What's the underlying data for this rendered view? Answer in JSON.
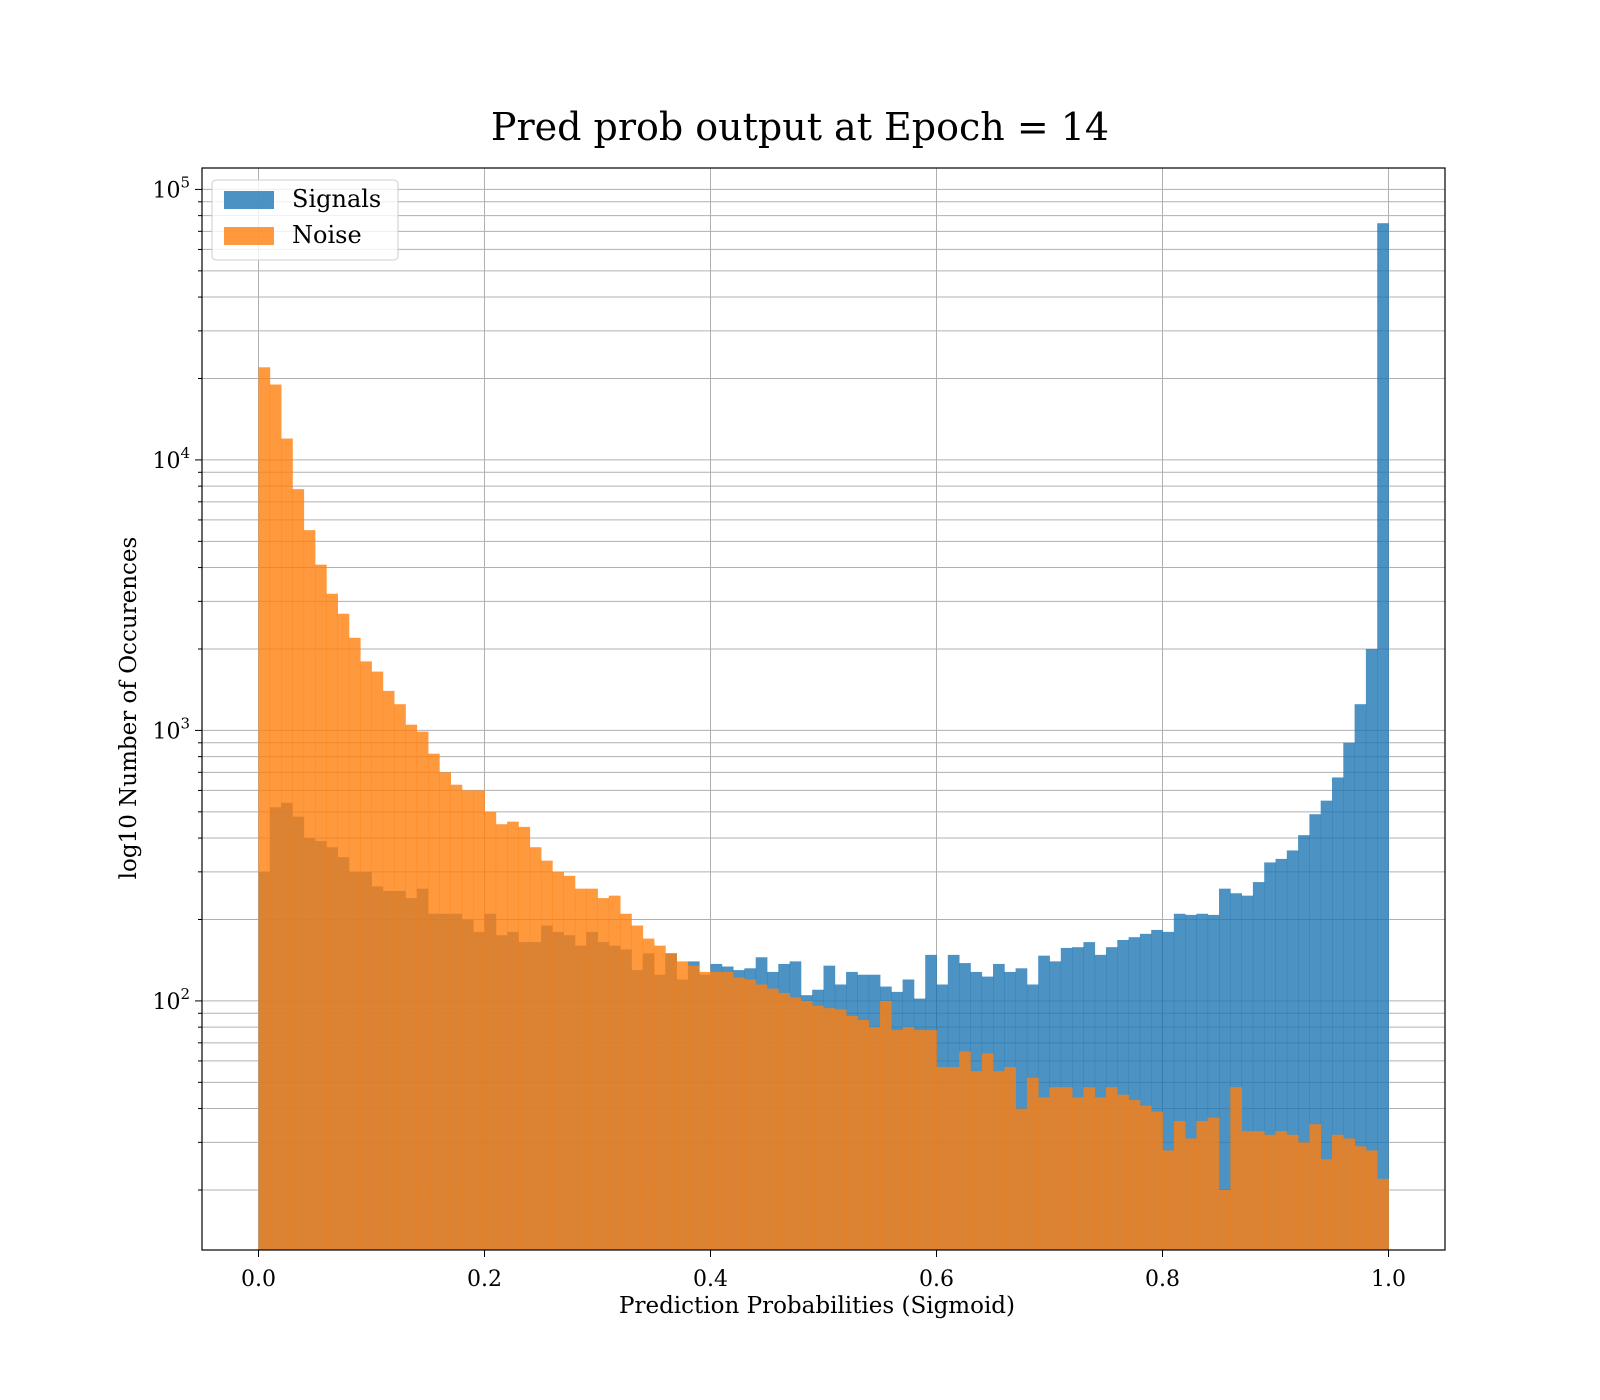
{
  "chart_data": {
    "type": "bar",
    "title": "Pred prob output at Epoch = 14",
    "xlabel": "Prediction Probabilities (Sigmoid)",
    "ylabel": "log10 Number of Occurences",
    "yscale": "log",
    "xlim": [
      -0.05,
      1.05
    ],
    "ylim": [
      12,
      120000
    ],
    "grid": true,
    "legend_position": "upper left",
    "xticks": [
      0.0,
      0.2,
      0.4,
      0.6,
      0.8,
      1.0
    ],
    "xtick_labels": [
      "0.0",
      "0.2",
      "0.4",
      "0.6",
      "0.8",
      "1.0"
    ],
    "yticks": [
      100,
      1000,
      10000,
      100000
    ],
    "ytick_labels": [
      {
        "base": "10",
        "exp": "2"
      },
      {
        "base": "10",
        "exp": "3"
      },
      {
        "base": "10",
        "exp": "4"
      },
      {
        "base": "10",
        "exp": "5"
      }
    ],
    "bins": 100,
    "bin_range": [
      0.0,
      1.0
    ],
    "series": [
      {
        "name": "Signals",
        "color": "#1f77b4",
        "opacity": 0.8,
        "values": [
          300,
          520,
          540,
          480,
          400,
          390,
          370,
          340,
          300,
          300,
          265,
          255,
          255,
          240,
          260,
          210,
          210,
          210,
          200,
          180,
          210,
          175,
          180,
          165,
          165,
          190,
          180,
          175,
          160,
          180,
          165,
          160,
          155,
          130,
          150,
          125,
          150,
          120,
          140,
          125,
          137,
          134,
          130,
          132,
          145,
          128,
          137,
          140,
          105,
          110,
          135,
          115,
          128,
          125,
          125,
          113,
          108,
          120,
          102,
          148,
          115,
          148,
          138,
          128,
          123,
          137,
          128,
          132,
          115,
          147,
          140,
          157,
          158,
          165,
          148,
          158,
          168,
          172,
          177,
          183,
          180,
          210,
          208,
          210,
          208,
          260,
          250,
          245,
          275,
          325,
          335,
          360,
          410,
          490,
          550,
          670,
          900,
          1250,
          2000,
          75000
        ]
      },
      {
        "name": "Noise",
        "color": "#ff7f0e",
        "opacity": 0.8,
        "values": [
          22000,
          19000,
          12000,
          7800,
          5500,
          4100,
          3200,
          2700,
          2200,
          1800,
          1650,
          1400,
          1250,
          1050,
          990,
          820,
          700,
          630,
          600,
          600,
          500,
          450,
          460,
          440,
          370,
          330,
          300,
          290,
          260,
          260,
          240,
          245,
          210,
          190,
          170,
          160,
          150,
          140,
          135,
          128,
          128,
          128,
          122,
          120,
          115,
          111,
          107,
          103,
          100,
          96,
          94,
          93,
          88,
          85,
          80,
          100,
          78,
          80,
          78,
          78,
          57,
          57,
          65,
          55,
          64,
          55,
          57,
          40,
          52,
          44,
          48,
          48,
          44,
          48,
          44,
          48,
          45,
          43,
          41,
          39,
          28,
          36,
          31,
          36,
          37,
          20,
          48,
          33,
          33,
          32,
          33,
          32,
          30,
          35,
          26,
          32,
          31,
          29,
          28,
          22
        ]
      }
    ]
  }
}
